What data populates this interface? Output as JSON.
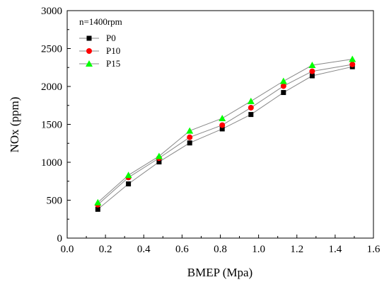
{
  "chart_data": {
    "type": "line",
    "annotation": "n=1400rpm",
    "xlabel": "BMEP (Mpa)",
    "ylabel": "NOx  (ppm)",
    "xlim": [
      0.0,
      1.6
    ],
    "ylim": [
      0,
      3000
    ],
    "x_ticks": [
      "0.0",
      "0.2",
      "0.4",
      "0.6",
      "0.8",
      "1.0",
      "1.2",
      "1.4",
      "1.6"
    ],
    "y_ticks": [
      "0",
      "500",
      "1000",
      "1500",
      "2000",
      "2500",
      "3000"
    ],
    "grid": false,
    "legend_position": "top-left",
    "x": [
      0.16,
      0.32,
      0.48,
      0.64,
      0.81,
      0.96,
      1.13,
      1.28,
      1.49
    ],
    "series": [
      {
        "name": "P0",
        "marker": "square",
        "color": "#000000",
        "values": [
          380,
          715,
          1005,
          1255,
          1440,
          1630,
          1920,
          2140,
          2260
        ]
      },
      {
        "name": "P10",
        "marker": "circle",
        "color": "#ff0000",
        "values": [
          440,
          800,
          1055,
          1330,
          1490,
          1720,
          2005,
          2200,
          2290
        ]
      },
      {
        "name": "P15",
        "marker": "triangle",
        "color": "#00ff00",
        "values": [
          470,
          830,
          1080,
          1415,
          1580,
          1805,
          2070,
          2280,
          2360
        ]
      }
    ]
  }
}
